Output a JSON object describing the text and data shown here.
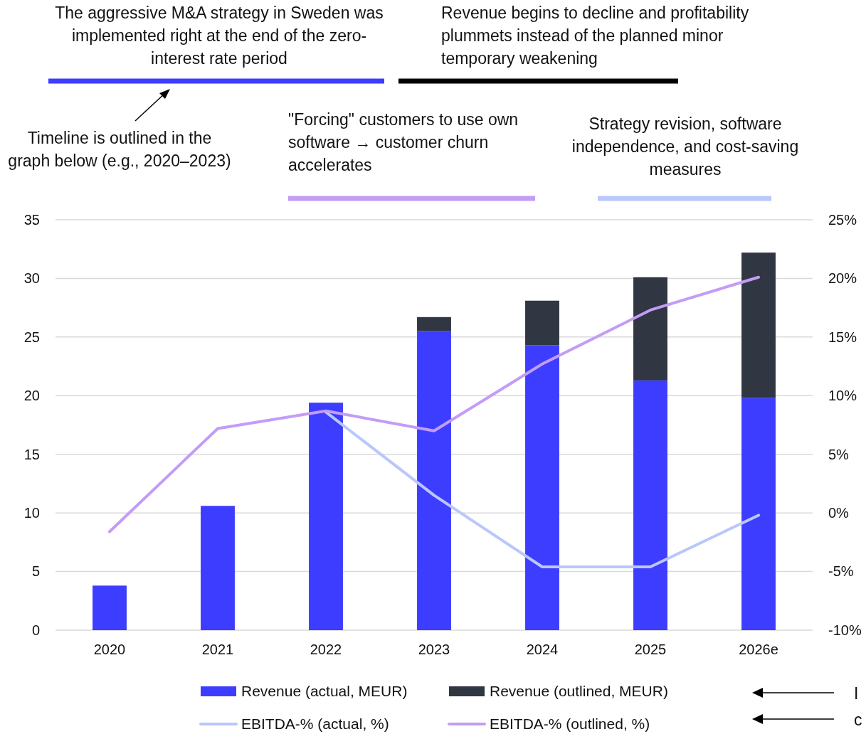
{
  "chart_data": {
    "type": "bar",
    "stacked": true,
    "categories": [
      "2020",
      "2021",
      "2022",
      "2023",
      "2024",
      "2025",
      "2026e"
    ],
    "series": [
      {
        "name": "Revenue (actual, MEUR)",
        "color": "#3d3dff",
        "values": [
          3.8,
          10.6,
          19.4,
          25.5,
          24.3,
          21.3,
          19.8
        ]
      },
      {
        "name": "Revenue (outlined, MEUR)",
        "color": "#303642",
        "values": [
          null,
          null,
          null,
          1.2,
          3.8,
          8.8,
          12.4
        ]
      },
      {
        "name": "EBITDA-% (actual, %)",
        "type": "line",
        "axis": "y2",
        "color": "#b9c7fb",
        "values": [
          null,
          null,
          8.6,
          1.5,
          -4.6,
          -4.6,
          -0.2
        ]
      },
      {
        "name": "EBITDA-% (outlined, %)",
        "type": "line",
        "axis": "y2",
        "color": "#c39cf7",
        "values": [
          -1.6,
          7.2,
          8.7,
          7.0,
          12.7,
          17.3,
          20.1
        ]
      }
    ],
    "ylim": [
      0,
      35
    ],
    "yticks": [
      0,
      5,
      10,
      15,
      20,
      25,
      30,
      35
    ],
    "y2lim": [
      -10,
      25
    ],
    "y2ticks": [
      {
        "value": -10,
        "label": "-10%"
      },
      {
        "value": -5,
        "label": "-5%"
      },
      {
        "value": 0,
        "label": "0%"
      },
      {
        "value": 5,
        "label": "5%"
      },
      {
        "value": 10,
        "label": "10%"
      },
      {
        "value": 15,
        "label": "15%"
      },
      {
        "value": 20,
        "label": "20%"
      },
      {
        "value": 25,
        "label": "25%"
      }
    ],
    "grid": "y",
    "legend": "bottom",
    "marker": "none",
    "line_style": "solid",
    "annotations": [
      "The aggressive M&A strategy in Sweden was implemented right at the end of the zero-interest rate period",
      "Revenue begins to decline and profitability plummets instead of the planned minor temporary weakening",
      "Timeline is outlined in the graph below (e.g., 2020–2023)",
      "\"Forcing\" customers to use own software → customer churn accelerates",
      "Strategy revision, software independence, and cost-saving measures",
      "I",
      "c"
    ]
  }
}
